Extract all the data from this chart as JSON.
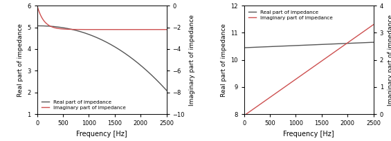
{
  "left": {
    "real_xlim": [
      0,
      2500
    ],
    "real_ylim": [
      1,
      6
    ],
    "imag_ylim": [
      -10,
      0
    ],
    "xlabel": "Frequency [Hz]",
    "ylabel_left": "Real part of impedance",
    "ylabel_right": "Imaginary part of impedance",
    "real_color": "#555555",
    "imag_color": "#cd5050",
    "legend_real": "Real part of impedance",
    "legend_imag": "Imaginary part of impedance",
    "real_yticks": [
      1,
      2,
      3,
      4,
      5,
      6
    ],
    "imag_yticks": [
      -10,
      -8,
      -6,
      -4,
      -2,
      0
    ],
    "xticks": [
      0,
      500,
      1000,
      1500,
      2000,
      2500
    ]
  },
  "right": {
    "real_xlim": [
      0,
      2500
    ],
    "real_ylim": [
      8,
      12
    ],
    "imag_ylim": [
      0,
      4
    ],
    "xlabel": "Frequency [Hz]",
    "ylabel_left": "Real part of impedance",
    "ylabel_right": "Imaginary part of impedance",
    "real_color": "#555555",
    "imag_color": "#cd5050",
    "legend_real": "Real part of impedance",
    "legend_imag": "Imaginary part of impedance",
    "real_yticks": [
      8,
      9,
      10,
      11,
      12
    ],
    "imag_yticks": [
      0,
      1,
      2,
      3,
      4
    ],
    "xticks": [
      0,
      500,
      1000,
      1500,
      2000,
      2500
    ]
  }
}
